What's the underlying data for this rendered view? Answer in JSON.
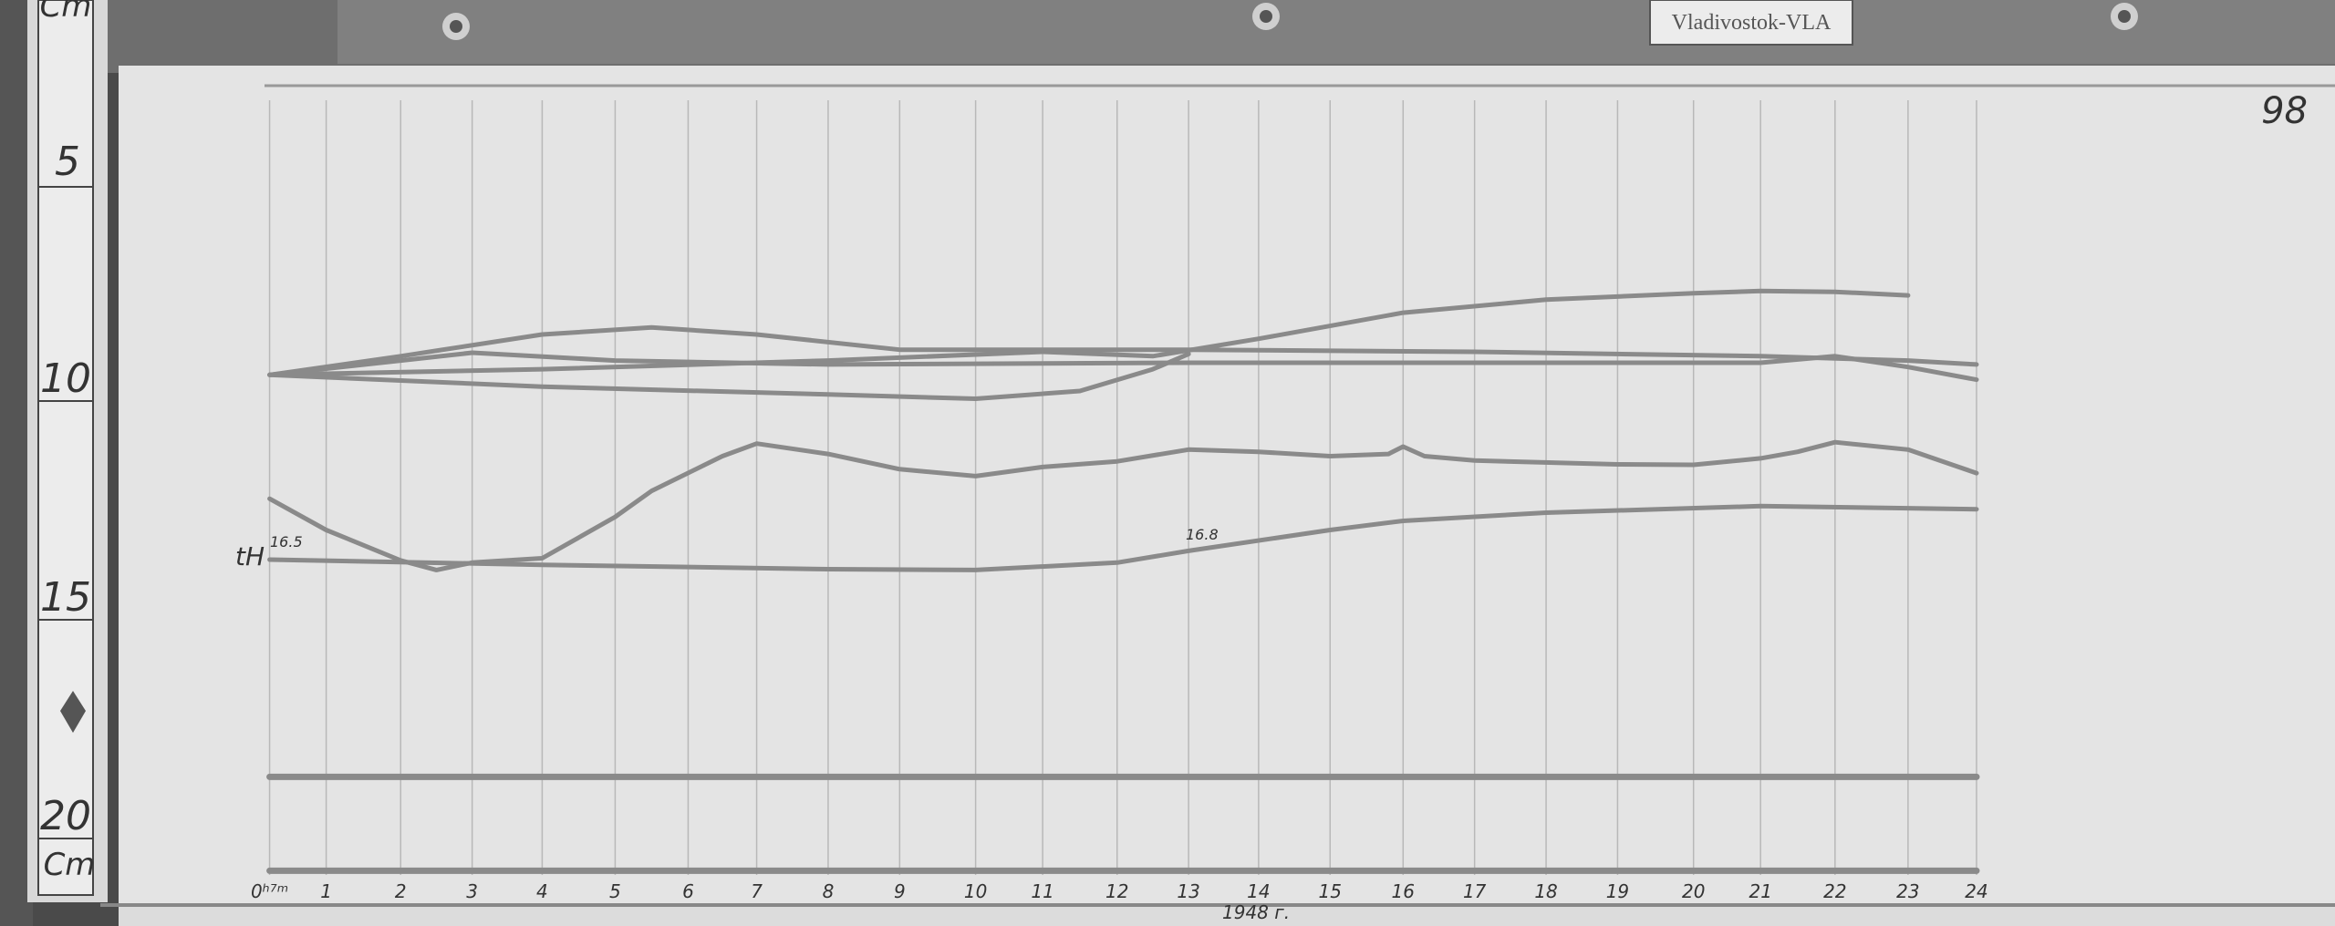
{
  "station_plate": "Vladivostok-VLA",
  "sheet_number": "98",
  "ruler": {
    "unit_top": "Cm",
    "unit_bottom": "Cm",
    "marks": [
      "5",
      "10",
      "15",
      "20"
    ]
  },
  "annotations": {
    "tH_label": "tH",
    "temp_start": "16.5",
    "temp_mid": "16.8",
    "footer_note": "1948 г."
  },
  "colors": {
    "paper": "#e4e4e4",
    "trace": "#8a8a8a",
    "grid": "#b8b8b8",
    "frame": "#555555"
  },
  "chart_data": {
    "type": "line",
    "title": "",
    "xlabel": "",
    "ylabel": "",
    "x_unit": "hours",
    "y_unit": "cm (ruler)",
    "xlim": [
      0,
      24
    ],
    "ylim": [
      3,
      22
    ],
    "grid": true,
    "x_tick_labels": [
      "0ʰ⁷ᵐ",
      "1",
      "2",
      "3",
      "4",
      "5",
      "6",
      "7",
      "8",
      "9",
      "10",
      "11",
      "12",
      "13",
      "14",
      "15",
      "16",
      "17",
      "18",
      "19",
      "20",
      "21",
      "22",
      "23",
      "24"
    ],
    "series": [
      {
        "points": [
          [
            0,
            10.03
          ],
          [
            4,
            9.9
          ],
          [
            8,
            9.7
          ],
          [
            11,
            9.5
          ],
          [
            12.5,
            9.6
          ],
          [
            14,
            9.2
          ],
          [
            16,
            8.6
          ],
          [
            18,
            8.3
          ],
          [
            20,
            8.15
          ],
          [
            21,
            8.1
          ],
          [
            22,
            8.12
          ],
          [
            23,
            8.2
          ]
        ]
      },
      {
        "points": [
          [
            0,
            10.03
          ],
          [
            2,
            9.6
          ],
          [
            4,
            9.1
          ],
          [
            5.5,
            8.94
          ],
          [
            7,
            9.1
          ],
          [
            9,
            9.45
          ],
          [
            13,
            9.45
          ],
          [
            17,
            9.5
          ],
          [
            21,
            9.6
          ],
          [
            23,
            9.7
          ],
          [
            24,
            9.79
          ]
        ]
      },
      {
        "points": [
          [
            0,
            10.03
          ],
          [
            2,
            9.7
          ],
          [
            3,
            9.52
          ],
          [
            5,
            9.7
          ],
          [
            8,
            9.79
          ],
          [
            13,
            9.75
          ],
          [
            21,
            9.75
          ],
          [
            22,
            9.6
          ],
          [
            23,
            9.85
          ],
          [
            24,
            10.14
          ]
        ]
      },
      {
        "points": [
          [
            0,
            10.03
          ],
          [
            4,
            10.3
          ],
          [
            8,
            10.48
          ],
          [
            10,
            10.58
          ],
          [
            11.5,
            10.4
          ],
          [
            12.5,
            9.9
          ],
          [
            13,
            9.55
          ]
        ]
      },
      {
        "points": [
          [
            0,
            12.88
          ],
          [
            1,
            13.6
          ],
          [
            2,
            14.3
          ],
          [
            2.5,
            14.52
          ],
          [
            3,
            14.35
          ],
          [
            4,
            14.25
          ],
          [
            5,
            13.3
          ],
          [
            5.5,
            12.7
          ],
          [
            6.5,
            11.9
          ],
          [
            7,
            11.61
          ],
          [
            8,
            11.85
          ],
          [
            9,
            12.2
          ],
          [
            10,
            12.36
          ],
          [
            11,
            12.15
          ],
          [
            12,
            12.02
          ],
          [
            13,
            11.75
          ],
          [
            14,
            11.8
          ],
          [
            15,
            11.9
          ],
          [
            15.8,
            11.85
          ],
          [
            16,
            11.68
          ],
          [
            16.3,
            11.9
          ],
          [
            17,
            12.0
          ],
          [
            19,
            12.09
          ],
          [
            20,
            12.1
          ],
          [
            21,
            11.95
          ],
          [
            21.5,
            11.8
          ],
          [
            22,
            11.58
          ],
          [
            23,
            11.75
          ],
          [
            24,
            12.29
          ]
        ]
      },
      {
        "points": [
          [
            0,
            14.28
          ],
          [
            4,
            14.4
          ],
          [
            8,
            14.5
          ],
          [
            10,
            14.52
          ],
          [
            12,
            14.35
          ],
          [
            13,
            14.08
          ],
          [
            15,
            13.6
          ],
          [
            16,
            13.39
          ],
          [
            18,
            13.2
          ],
          [
            21,
            13.05
          ],
          [
            24,
            13.12
          ]
        ]
      },
      {
        "points": [
          [
            0,
            19.28
          ],
          [
            24,
            19.28
          ]
        ]
      },
      {
        "points": [
          [
            0,
            21.44
          ],
          [
            24,
            21.44
          ]
        ]
      }
    ]
  }
}
